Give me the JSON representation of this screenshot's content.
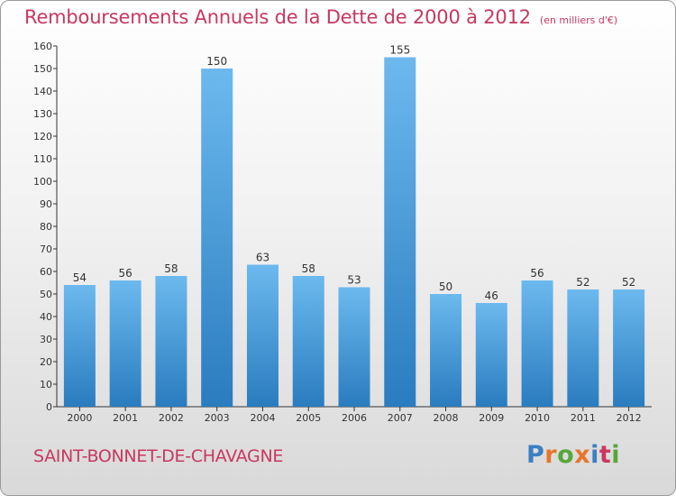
{
  "header": {
    "title": "Remboursements Annuels de la Dette de 2000 à 2012",
    "subtitle": "(en milliers d'€)"
  },
  "footer": {
    "commune": "SAINT-BONNET-DE-CHAVAGNE",
    "brand": {
      "letters": [
        "P",
        "r",
        "o",
        "x",
        "i",
        "t",
        "i"
      ],
      "colors": [
        "#3b7fc4",
        "#e6752a",
        "#56a83a",
        "#e6752a",
        "#3b7fc4",
        "#c8385f",
        "#56a83a"
      ]
    }
  },
  "colors": {
    "bar_top": "#6cb9ee",
    "bar_bottom": "#2a7cbf",
    "axis": "#333333",
    "title": "#c8385f"
  },
  "chart_data": {
    "type": "bar",
    "title": "Remboursements Annuels de la Dette de 2000 à 2012",
    "subtitle": "(en milliers d'€)",
    "categories": [
      "2000",
      "2001",
      "2002",
      "2003",
      "2004",
      "2005",
      "2006",
      "2007",
      "2008",
      "2009",
      "2010",
      "2011",
      "2012"
    ],
    "values": [
      54,
      56,
      58,
      150,
      63,
      58,
      53,
      155,
      50,
      46,
      56,
      52,
      52
    ],
    "ylim": [
      0,
      160
    ],
    "yticks": [
      "0",
      "10",
      "20",
      "30",
      "40",
      "50",
      "60",
      "70",
      "80",
      "90",
      "100",
      "110",
      "120",
      "130",
      "140",
      "150",
      "160"
    ],
    "grid": false,
    "data_labels": true
  }
}
